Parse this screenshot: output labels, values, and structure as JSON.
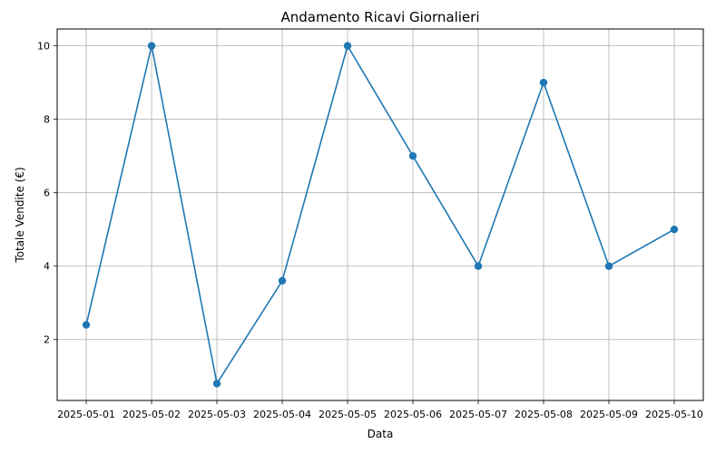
{
  "chart_data": {
    "type": "line",
    "title": "Andamento Ricavi Giornalieri",
    "xlabel": "Data",
    "ylabel": "Totale Vendite (€)",
    "x": [
      "2025-05-01",
      "2025-05-02",
      "2025-05-03",
      "2025-05-04",
      "2025-05-05",
      "2025-05-06",
      "2025-05-07",
      "2025-05-08",
      "2025-05-09",
      "2025-05-10"
    ],
    "values": [
      2.4,
      10.0,
      0.8,
      3.6,
      10.0,
      7.0,
      4.0,
      9.0,
      4.0,
      5.0
    ],
    "yticks": [
      2,
      4,
      6,
      8,
      10
    ],
    "ylim": [
      0.34,
      10.46
    ],
    "grid": true,
    "line_color": "#1f77b4",
    "marker": "circle"
  }
}
